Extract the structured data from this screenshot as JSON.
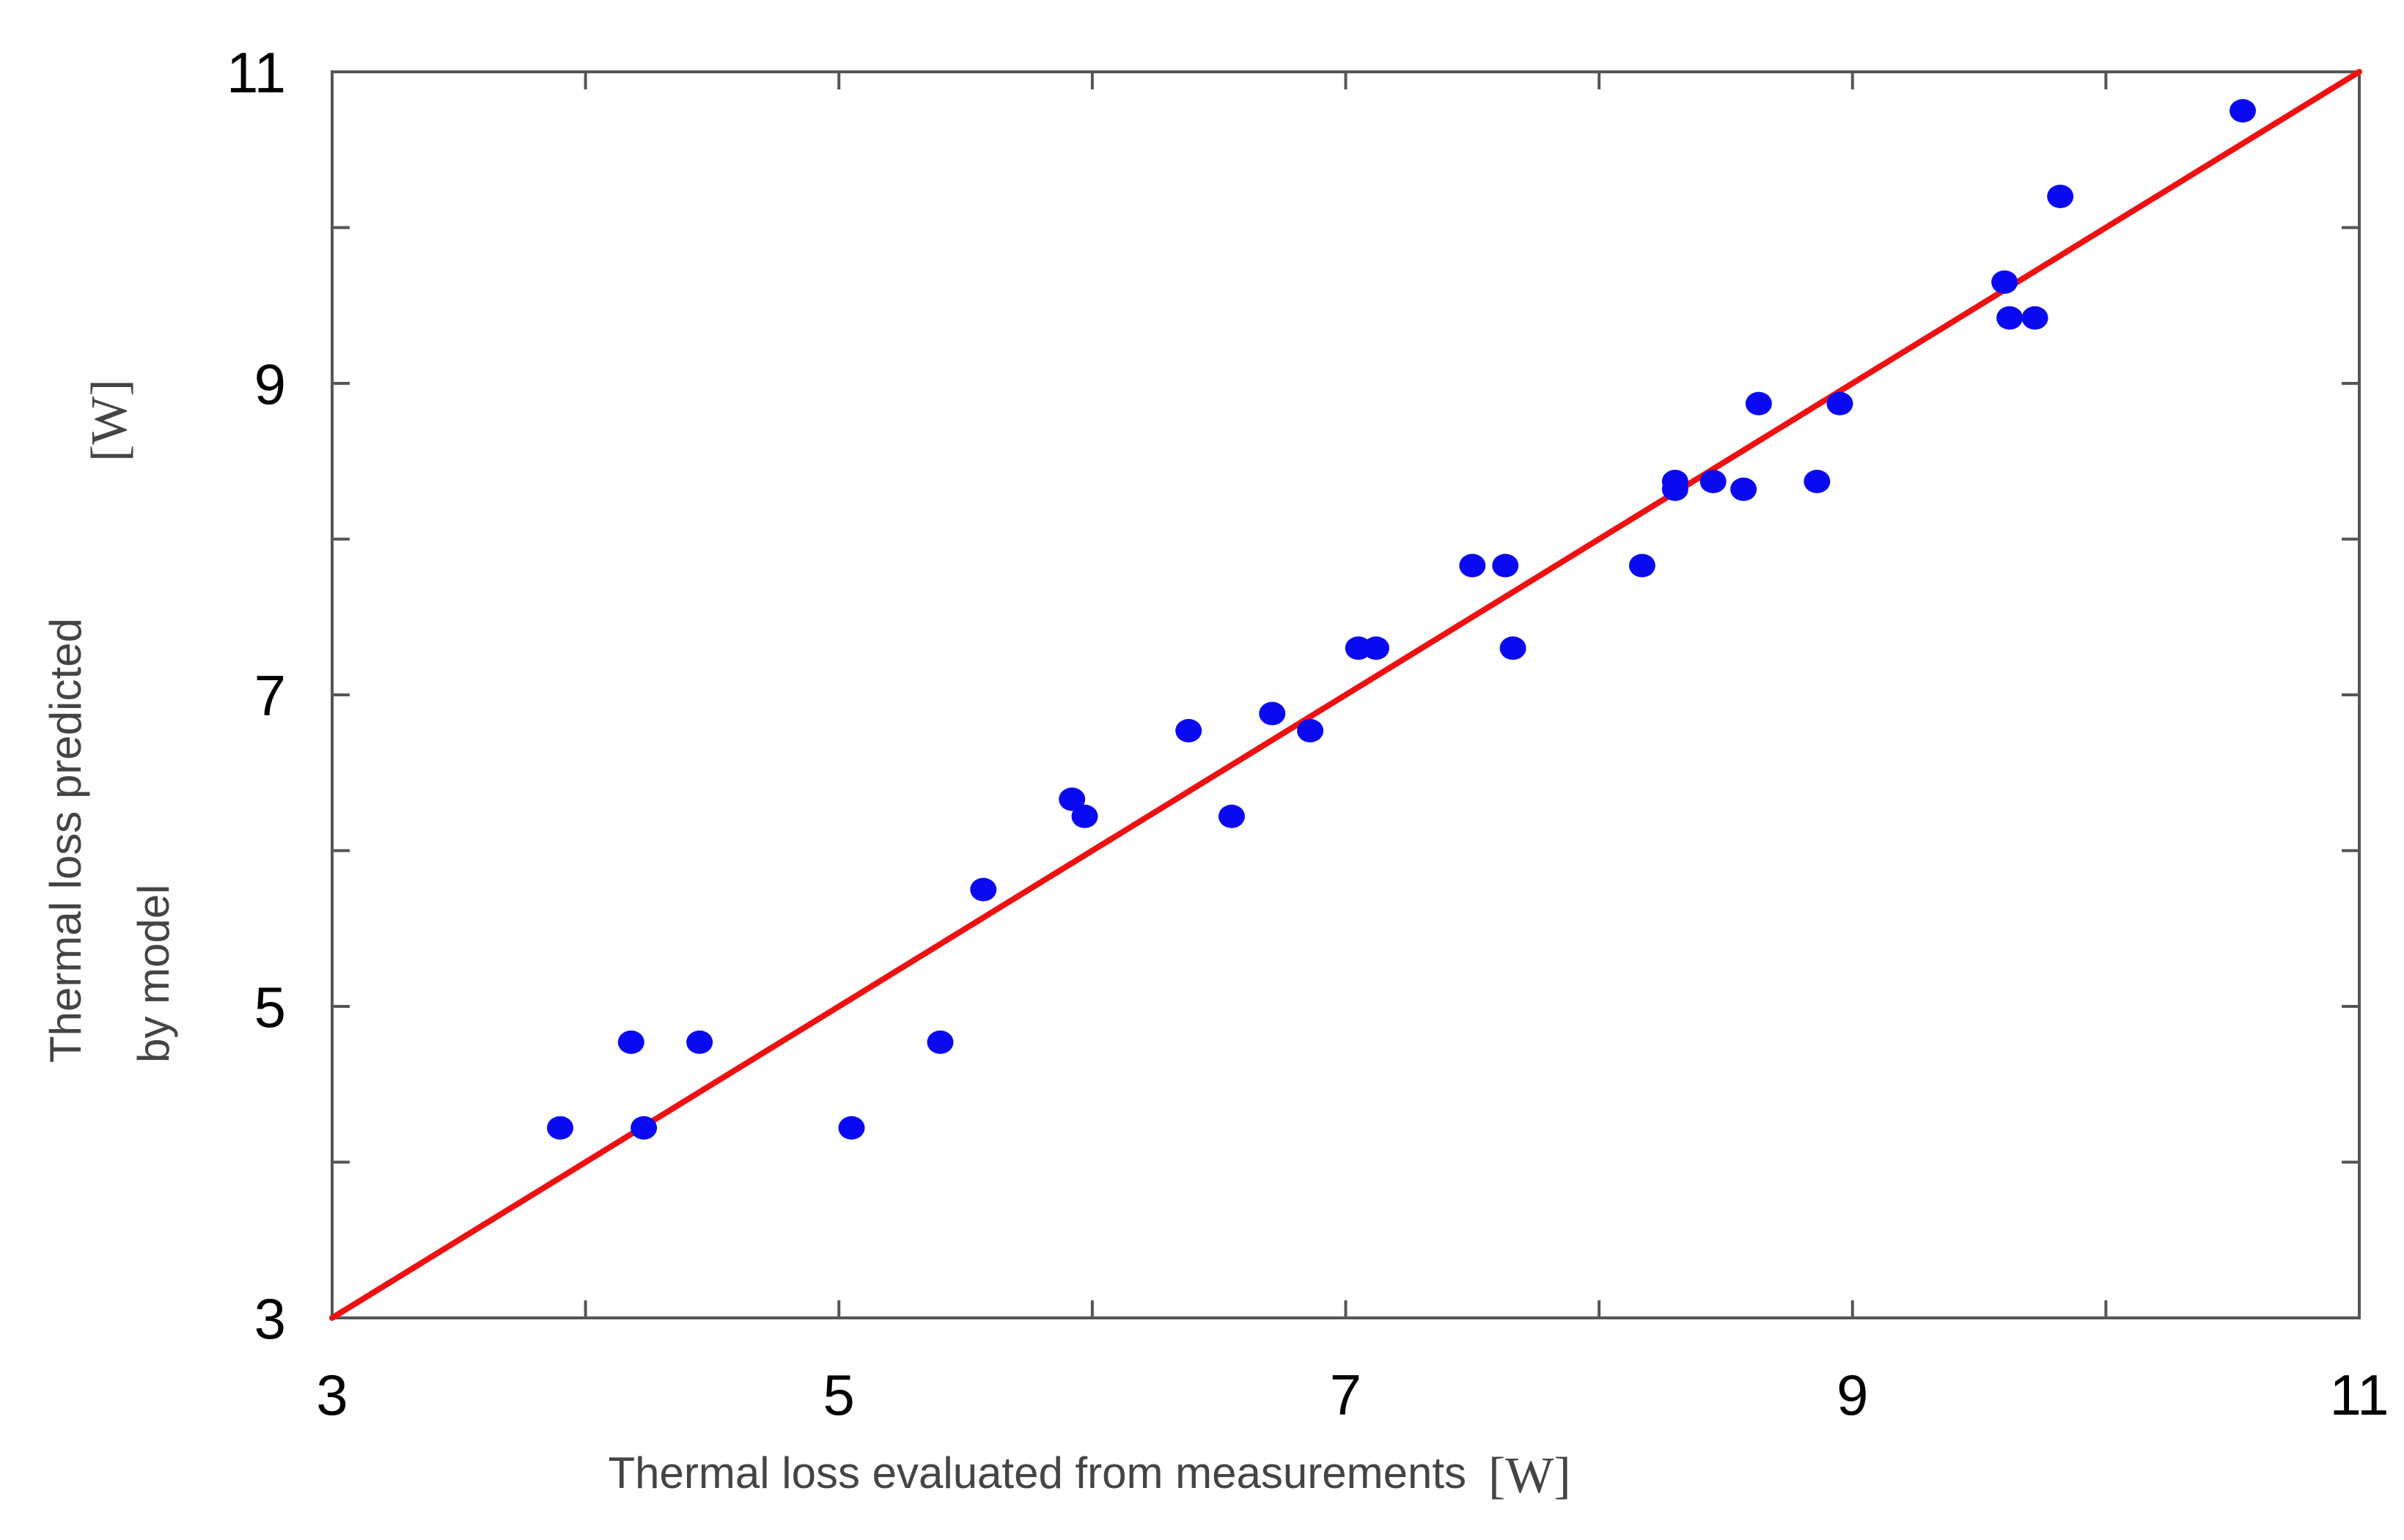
{
  "chart_data": {
    "type": "scatter",
    "title": "",
    "xlabel": "Thermal loss  evaluated from measurements",
    "xunit": "[W]",
    "ylabel_line1": "Thermal loss  predicted",
    "ylabel_line2": "by model",
    "yunit": "[W]",
    "xlim": [
      3,
      11
    ],
    "ylim": [
      3,
      11
    ],
    "x_major_ticks": [
      3,
      5,
      7,
      9,
      11
    ],
    "x_minor_ticks": [
      4,
      6,
      8,
      10
    ],
    "y_major_ticks": [
      3,
      5,
      7,
      9,
      11
    ],
    "y_minor_ticks": [
      4,
      6,
      8,
      10
    ],
    "x_tick_labels": [
      "3",
      "5",
      "7",
      "9",
      "11"
    ],
    "y_tick_labels": [
      "3",
      "5",
      "7",
      "9",
      "11"
    ],
    "grid": false,
    "fit_line": {
      "x": [
        3,
        11
      ],
      "y": [
        3,
        11
      ],
      "color": "#ee1111"
    },
    "marker_color": "#0a0af0",
    "series": [
      {
        "name": "measurements",
        "x": [
          3.9,
          4.18,
          4.23,
          4.45,
          5.05,
          5.4,
          5.57,
          5.92,
          5.97,
          6.38,
          6.55,
          6.71,
          6.86,
          7.05,
          7.12,
          7.5,
          7.63,
          7.66,
          8.17,
          8.3,
          8.3,
          8.45,
          8.57,
          8.63,
          8.86,
          8.95,
          9.6,
          9.62,
          9.72,
          9.82,
          10.54
        ],
        "y": [
          4.22,
          4.77,
          4.22,
          4.77,
          4.22,
          4.77,
          5.75,
          6.33,
          6.22,
          6.77,
          6.22,
          6.88,
          6.77,
          7.3,
          7.3,
          7.83,
          7.83,
          7.3,
          7.83,
          8.37,
          8.32,
          8.37,
          8.32,
          8.87,
          8.37,
          8.87,
          9.65,
          9.42,
          9.42,
          10.2,
          10.75
        ]
      }
    ]
  }
}
